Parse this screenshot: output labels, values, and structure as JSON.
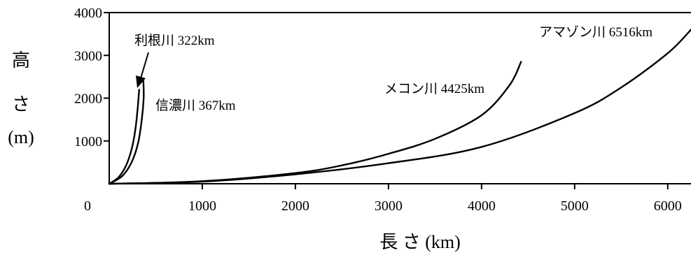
{
  "chart_data": {
    "type": "line",
    "xlabel": "長 さ (km)",
    "ylabel": [
      "高",
      "さ",
      "(m)"
    ],
    "xlim": [
      0,
      6250
    ],
    "ylim": [
      0,
      4000
    ],
    "x_ticks": [
      1000,
      2000,
      3000,
      4000,
      5000,
      6000
    ],
    "y_ticks": [
      1000,
      2000,
      3000,
      4000
    ],
    "origin_label": "0",
    "grid": false,
    "series": [
      {
        "name": "利根川 322km",
        "x": [
          0,
          100,
          180,
          240,
          280,
          305,
          322
        ],
        "y": [
          0,
          150,
          420,
          800,
          1250,
          1750,
          2200
        ]
      },
      {
        "name": "信濃川 367km",
        "x": [
          0,
          140,
          240,
          310,
          350,
          370,
          367
        ],
        "y": [
          0,
          180,
          500,
          950,
          1500,
          2000,
          2400
        ]
      },
      {
        "name": "メコン川 4425km",
        "x": [
          0,
          1000,
          2000,
          2500,
          3000,
          3500,
          4000,
          4300,
          4425
        ],
        "y": [
          0,
          60,
          250,
          430,
          700,
          1050,
          1600,
          2300,
          2850
        ]
      },
      {
        "name": "アマゾン川 6516km",
        "x": [
          0,
          1000,
          2000,
          3000,
          4000,
          5000,
          5500,
          6000,
          6250
        ],
        "y": [
          0,
          50,
          220,
          480,
          860,
          1650,
          2250,
          3050,
          3600
        ]
      }
    ],
    "annotations": [
      {
        "text": "利根川 322km",
        "arrow_to_series": "利根川 322km"
      }
    ]
  }
}
